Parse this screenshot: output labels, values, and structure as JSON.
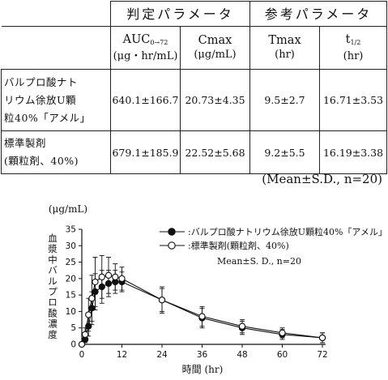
{
  "table": {
    "group_headers": {
      "judgement": "判定パラメータ",
      "reference": "参考パラメータ"
    },
    "columns": [
      {
        "main": "AUC",
        "sub": "0→72",
        "unit": "(μg・hr/mL)"
      },
      {
        "main": "Cmax",
        "unit": "(μg/mL)"
      },
      {
        "main": "Tmax",
        "unit": "(hr)"
      },
      {
        "main": "t",
        "sub": "1/2",
        "unit": "(hr)"
      }
    ],
    "rows": [
      {
        "label_lines": [
          "バルプロ酸ナト",
          "リウム徐放U顆",
          "粒40%「アメル」"
        ],
        "values": [
          "640.1±166.7",
          "20.73±4.35",
          "9.5±2.7",
          "16.71±3.53"
        ]
      },
      {
        "label_lines": [
          "標準製剤",
          "(顆粒剤、40%)"
        ],
        "values": [
          "679.1±185.9",
          "22.52±5.68",
          "9.2±5.5",
          "16.19±3.38"
        ]
      }
    ],
    "note": "(Mean±S.D., n=20)"
  },
  "chart_data": {
    "type": "line",
    "ylabel": "血漿中バルプロ酸濃度",
    "yunit": "(μg/mL)",
    "xlabel": "時間 (hr)",
    "xlim": [
      0,
      72
    ],
    "ylim": [
      0,
      35
    ],
    "xticks": [
      0,
      12,
      24,
      36,
      48,
      60,
      72
    ],
    "yticks": [
      0,
      5,
      10,
      15,
      20,
      25,
      30,
      35
    ],
    "legend_note": "Mean±S. D., n=20",
    "series": [
      {
        "name": ":バルプロ酸ナトリウム徐放U顆粒40%「アメル」",
        "marker": "filled",
        "x": [
          0,
          1,
          2,
          3,
          4,
          6,
          8,
          10,
          12,
          24,
          36,
          48,
          60,
          72
        ],
        "y": [
          0,
          1.5,
          5.5,
          11,
          16,
          17.5,
          18.5,
          19,
          19,
          13.5,
          8,
          5,
          3,
          2
        ],
        "err": [
          0,
          1,
          3,
          5,
          5.5,
          5,
          4,
          3.5,
          3,
          3.5,
          3,
          2,
          1.5,
          1.5
        ]
      },
      {
        "name": ":標準製剤(顆粒剤、40%)",
        "marker": "open",
        "x": [
          0,
          1,
          2,
          3,
          4,
          6,
          8,
          10,
          12,
          24,
          36,
          48,
          60,
          72
        ],
        "y": [
          0,
          3,
          9,
          14,
          19,
          20.5,
          21,
          20.5,
          20,
          13.5,
          8.5,
          5.5,
          3.5,
          2
        ],
        "err": [
          0,
          2,
          5,
          7,
          7.5,
          6.5,
          5.5,
          4,
          3.5,
          4,
          3,
          2,
          1.5,
          1.5
        ]
      }
    ]
  }
}
